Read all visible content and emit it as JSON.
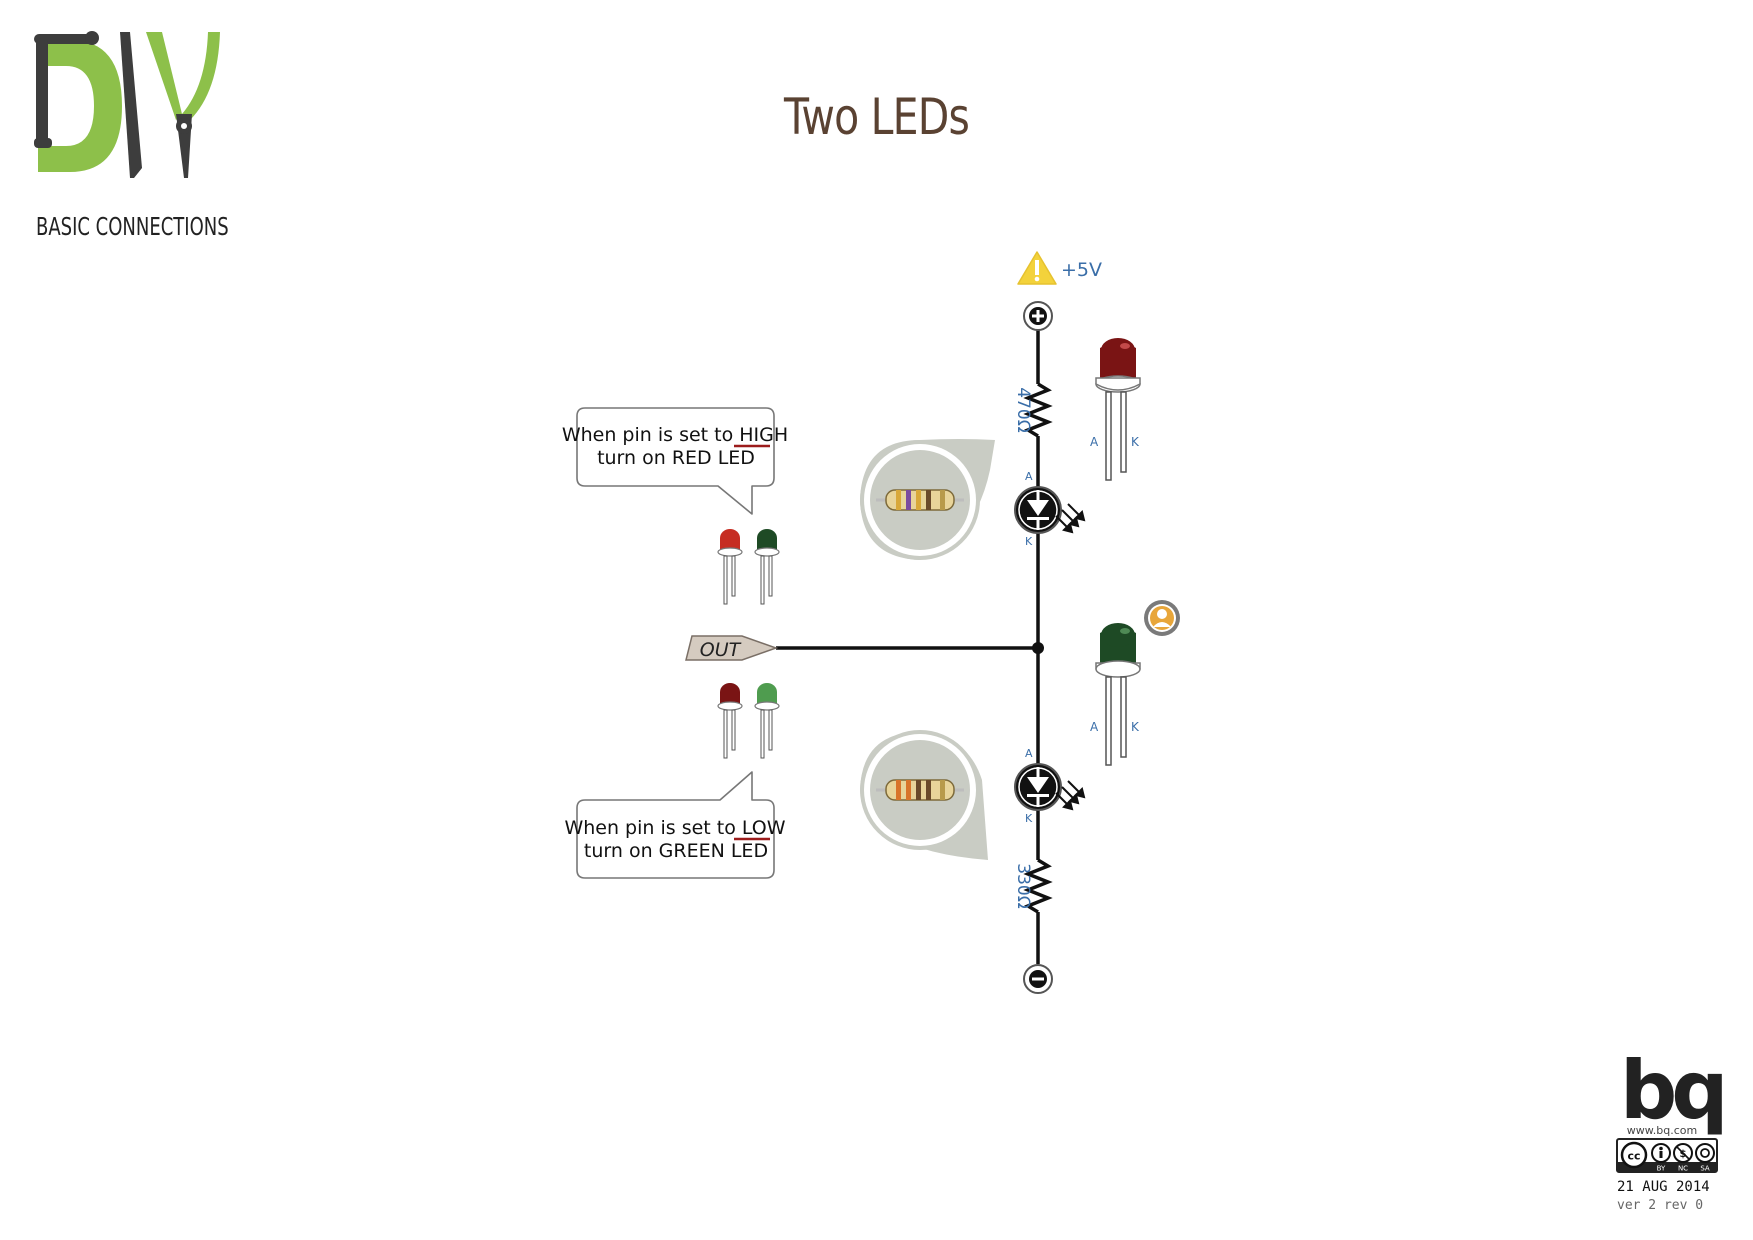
{
  "header": {
    "logo_text": "DIY",
    "subtitle": "BASIC CONNECTIONS",
    "title": "Two LEDs"
  },
  "supply": {
    "label": "+5V"
  },
  "resistors": {
    "top_value": "470Ω",
    "bottom_value": "330Ω"
  },
  "pin_labels": {
    "anode": "A",
    "cathode": "K"
  },
  "output": {
    "label": "OUT"
  },
  "bubbles": {
    "high": {
      "line1_pre": "When pin is set to ",
      "line1_key": "HIGH",
      "line2": "turn on RED LED"
    },
    "low": {
      "line1_pre": "When pin is set to ",
      "line1_key": "LOW",
      "line2": "turn on GREEN LED"
    }
  },
  "footer": {
    "brand": "bq",
    "url": "www.bq.com",
    "license_tags": [
      "BY",
      "NC",
      "SA"
    ],
    "date": "21 AUG 2014",
    "version": "ver 2 rev 0"
  },
  "colors": {
    "title": "#5a4232",
    "logo_green": "#8dc04a",
    "logo_gray": "#3d3d3d",
    "wire": "#111111",
    "label_blue": "#3a6ea8",
    "red_led": "#7a1414",
    "green_led": "#1e4a25",
    "light_green_led": "#4f9c4f",
    "bright_red_led": "#c62d22",
    "warning_yellow": "#f3d23b",
    "underline_red": "#9c1c1c"
  }
}
